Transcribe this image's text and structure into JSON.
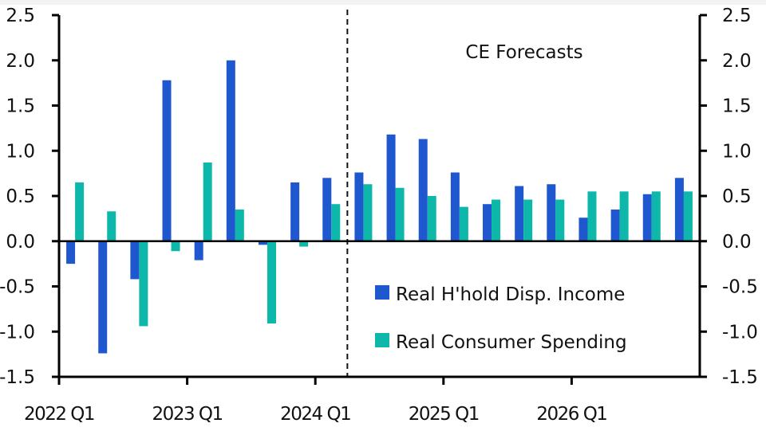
{
  "chart_data": {
    "type": "bar",
    "title": "",
    "xlabel": "",
    "ylabel": "",
    "ylim": [
      -1.5,
      2.5
    ],
    "yticks": [
      "2.5",
      "2.0",
      "1.5",
      "1.0",
      "0.5",
      "0.0",
      "-0.5",
      "-1.0",
      "-1.5"
    ],
    "ytick_values": [
      2.5,
      2.0,
      1.5,
      1.0,
      0.5,
      0.0,
      -0.5,
      -1.0,
      -1.5
    ],
    "right_axis_mirrors_left": true,
    "grid": false,
    "categories": [
      "2022 Q1",
      "2022 Q2",
      "2022 Q3",
      "2022 Q4",
      "2023 Q1",
      "2023 Q2",
      "2023 Q3",
      "2023 Q4",
      "2024 Q1",
      "2024 Q2",
      "2024 Q3",
      "2024 Q4",
      "2025 Q1",
      "2025 Q2",
      "2025 Q3",
      "2025 Q4",
      "2026 Q1",
      "2026 Q2",
      "2026 Q3",
      "2026 Q4"
    ],
    "xtick_labels": [
      "2022 Q1",
      "2023 Q1",
      "2024 Q1",
      "2025 Q1",
      "2026 Q1"
    ],
    "xtick_categories": [
      "2022 Q1",
      "2023 Q1",
      "2024 Q1",
      "2025 Q1",
      "2026 Q1"
    ],
    "series": [
      {
        "name": "Real H'hold Disp. Income",
        "color": "#1f57cf",
        "values": [
          -0.25,
          -1.24,
          -0.42,
          1.78,
          -0.21,
          2.0,
          -0.04,
          0.65,
          0.7,
          0.76,
          1.18,
          1.13,
          0.76,
          0.41,
          0.61,
          0.63,
          0.26,
          0.35,
          0.52,
          0.7
        ]
      },
      {
        "name": "Real Consumer Spending",
        "color": "#0db8aa",
        "values": [
          0.65,
          0.33,
          -0.94,
          -0.11,
          0.87,
          0.35,
          -0.91,
          -0.06,
          0.41,
          0.63,
          0.59,
          0.5,
          0.38,
          0.46,
          0.46,
          0.46,
          0.55,
          0.55,
          0.55,
          0.55
        ]
      }
    ],
    "forecast_divider_after": "2024 Q1",
    "annotations": [
      {
        "text": "CE Forecasts",
        "placement": "top-right"
      }
    ],
    "legend": {
      "placement": "bottom-right"
    }
  }
}
